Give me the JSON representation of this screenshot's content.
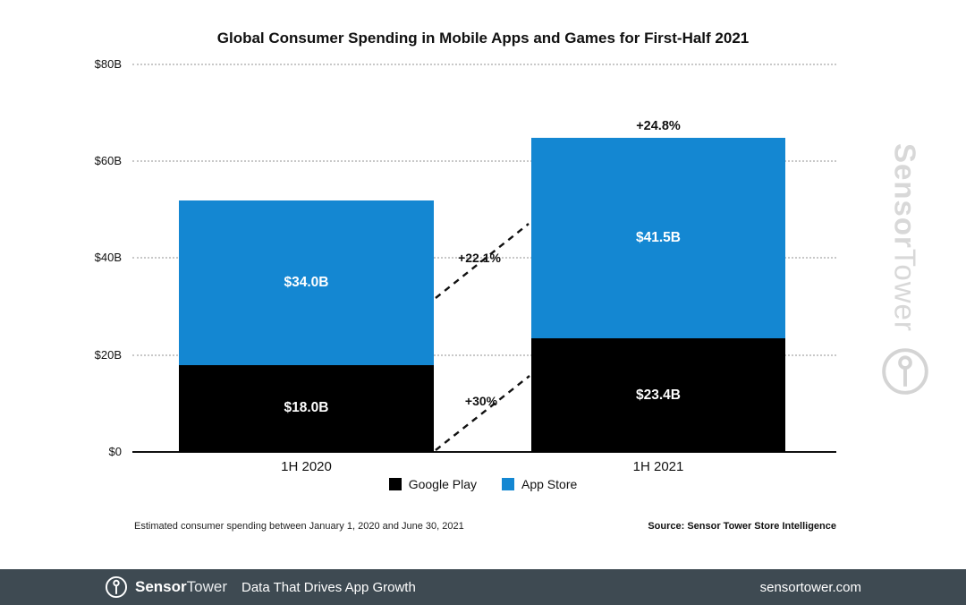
{
  "title": "Global Consumer Spending in Mobile Apps and Games for First-Half 2021",
  "chart_data": {
    "type": "bar",
    "stacked": true,
    "categories": [
      "1H 2020",
      "1H 2021"
    ],
    "series": [
      {
        "name": "Google Play",
        "color": "#000000",
        "values": [
          18.0,
          23.4
        ],
        "labels": [
          "$18.0B",
          "$23.4B"
        ]
      },
      {
        "name": "App Store",
        "color": "#1487d2",
        "values": [
          34.0,
          41.5
        ],
        "labels": [
          "$34.0B",
          "$41.5B"
        ]
      }
    ],
    "totals": [
      52.0,
      64.9
    ],
    "growth_labels": {
      "total_1h2021": "+24.8%",
      "app_store": "+22.1%",
      "google_play": "+30%"
    },
    "unit": "USD billions",
    "ylim": [
      0,
      80
    ],
    "yticks": [
      "$80B",
      "$60B",
      "$40B",
      "$20B",
      "$0"
    ],
    "ytick_values": [
      80,
      60,
      40,
      20,
      0
    ],
    "grid": "dotted horizontal",
    "legend_position": "bottom-center"
  },
  "footnote": "Estimated consumer spending between January 1, 2020 and June 30, 2021",
  "source": "Source: Sensor Tower Store Intelligence",
  "watermark": {
    "brand_bold": "Sensor",
    "brand_light": "Tower",
    "color": "#d8d8d8"
  },
  "footer": {
    "brand_bold": "Sensor",
    "brand_light": "Tower",
    "tagline": "Data That Drives App Growth",
    "website": "sensortower.com",
    "background": "#3e4a52"
  }
}
